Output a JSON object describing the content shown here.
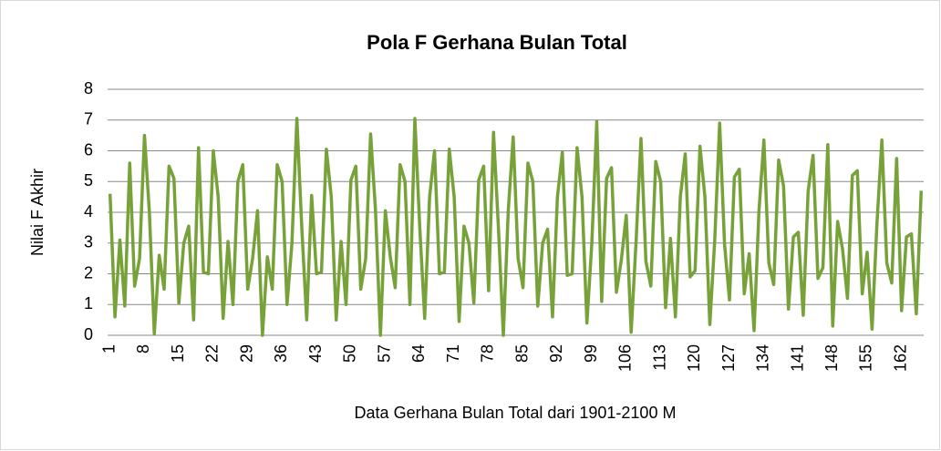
{
  "chart_data": {
    "type": "line",
    "title": "Pola F Gerhana Bulan Total",
    "x_label": "Data Gerhana Bulan Total dari 1901-2100 M",
    "y_label": "Nilai F Akhir",
    "categories": [
      1,
      null,
      null,
      null,
      null,
      null,
      null,
      8,
      null,
      null,
      null,
      null,
      null,
      null,
      15,
      null,
      null,
      null,
      null,
      null,
      null,
      22,
      null,
      null,
      null,
      null,
      null,
      null,
      29,
      null,
      null,
      null,
      null,
      null,
      null,
      36,
      null,
      null,
      null,
      null,
      null,
      null,
      43,
      null,
      null,
      null,
      null,
      null,
      null,
      50,
      null,
      null,
      null,
      null,
      null,
      null,
      57,
      null,
      null,
      null,
      null,
      null,
      null,
      64,
      null,
      null,
      null,
      null,
      null,
      null,
      71,
      null,
      null,
      null,
      null,
      null,
      null,
      78,
      null,
      null,
      null,
      null,
      null,
      null,
      85,
      null,
      null,
      null,
      null,
      null,
      null,
      92,
      null,
      null,
      null,
      null,
      null,
      null,
      99,
      null,
      null,
      null,
      null,
      null,
      null,
      106,
      null,
      null,
      null,
      null,
      null,
      null,
      113,
      null,
      null,
      null,
      null,
      null,
      null,
      120,
      null,
      null,
      null,
      null,
      null,
      null,
      127,
      null,
      null,
      null,
      null,
      null,
      null,
      134,
      null,
      null,
      null,
      null,
      null,
      null,
      141,
      null,
      null,
      null,
      null,
      null,
      null,
      148,
      null,
      null,
      null,
      null,
      null,
      null,
      155,
      null,
      null,
      null,
      null,
      null,
      null,
      162,
      null,
      null,
      null,
      null
    ],
    "series": [
      {
        "name": "Nilai F Akhir",
        "color": "#77a23a",
        "values": [
          4.6,
          0.6,
          3.1,
          0.95,
          5.6,
          1.6,
          2.5,
          6.5,
          4.0,
          0.05,
          2.6,
          1.5,
          5.5,
          5.1,
          1.05,
          3.0,
          3.55,
          0.5,
          6.1,
          2.05,
          2.0,
          6.0,
          4.5,
          0.55,
          3.05,
          1.0,
          5.0,
          5.55,
          1.5,
          2.5,
          4.05,
          0.0,
          2.55,
          1.5,
          5.55,
          5.0,
          1.0,
          3.0,
          7.05,
          3.5,
          0.5,
          4.55,
          2.0,
          2.05,
          6.05,
          4.5,
          0.5,
          3.05,
          1.0,
          5.05,
          5.5,
          1.5,
          2.5,
          6.55,
          4.05,
          0.0,
          4.05,
          2.55,
          1.55,
          5.55,
          5.0,
          1.0,
          7.05,
          3.5,
          0.55,
          4.5,
          6.0,
          2.0,
          2.05,
          6.05,
          4.5,
          0.45,
          3.55,
          3.0,
          1.05,
          5.05,
          5.5,
          1.45,
          6.6,
          3.5,
          0.0,
          4.05,
          6.45,
          2.5,
          1.55,
          5.6,
          5.0,
          0.95,
          3.0,
          3.45,
          0.6,
          4.5,
          5.95,
          1.95,
          2.0,
          6.1,
          4.5,
          0.4,
          3.0,
          6.95,
          1.1,
          5.1,
          5.45,
          1.4,
          2.45,
          3.9,
          0.1,
          3.05,
          6.4,
          2.4,
          1.6,
          5.65,
          5.0,
          0.9,
          3.15,
          0.6,
          4.5,
          5.9,
          1.9,
          2.1,
          6.15,
          4.5,
          0.35,
          3.1,
          6.9,
          2.95,
          1.15,
          5.15,
          5.4,
          1.35,
          2.65,
          0.15,
          4.05,
          6.35,
          2.35,
          1.65,
          5.7,
          4.85,
          0.85,
          3.2,
          3.35,
          0.65,
          4.7,
          5.85,
          1.85,
          2.2,
          6.2,
          0.3,
          3.7,
          2.8,
          1.2,
          5.2,
          5.35,
          1.35,
          2.7,
          0.2,
          3.65,
          6.35,
          2.35,
          1.7,
          5.75,
          0.8,
          3.2,
          3.3,
          0.7,
          4.7
        ]
      }
    ],
    "ylim": [
      0,
      8
    ],
    "yticks": [
      0,
      1,
      2,
      3,
      4,
      5,
      6,
      7,
      8
    ],
    "grid": true
  }
}
